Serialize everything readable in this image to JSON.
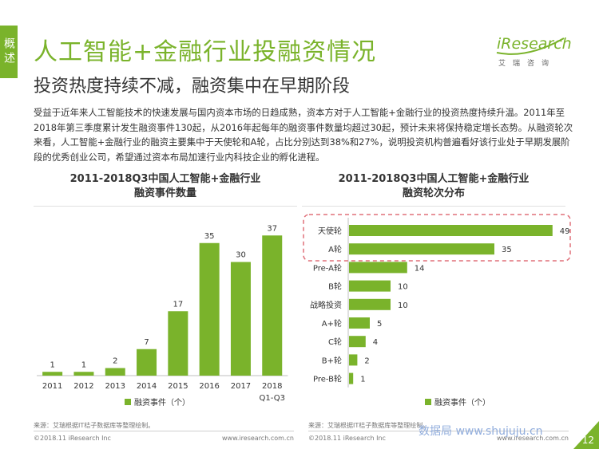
{
  "side_tab": "概述",
  "title": "人工智能+金融行业投融资情况",
  "subtitle": "投资热度持续不减，融资集中在早期阶段",
  "logo": {
    "text": "iResearch",
    "sub": "艾瑞咨询"
  },
  "body": "受益于近年来人工智能技术的快速发展与国内资本市场的日趋成熟，资本方对于人工智能+金融行业的投资热度持续升温。2011年至2018年第三季度累计发生融资事件130起，从2016年起每年的融资事件数量均超过30起，预计未来将保持稳定增长态势。从融资轮次来看，人工智能+金融行业的融资主要集中于天使轮和A轮，占比分别达到38%和27%，说明投资机构普遍看好该行业处于早期发展阶段的优秀创业公司，希望通过资本布局加速行业内科技企业的孵化进程。",
  "colors": {
    "accent": "#7ab32b",
    "highlight_border": "#e0707a"
  },
  "chart_data": [
    {
      "type": "bar",
      "title": "2011-2018Q3中国人工智能+金融行业\n融资事件数量",
      "categories": [
        "2011",
        "2012",
        "2013",
        "2014",
        "2015",
        "2016",
        "2017",
        "2018\nQ1-Q3"
      ],
      "series": [
        {
          "name": "融资事件（个）",
          "values": [
            1,
            1,
            2,
            7,
            17,
            35,
            30,
            37
          ]
        }
      ],
      "ylim": [
        0,
        40
      ],
      "legend": "bottom"
    },
    {
      "type": "bar",
      "orientation": "horizontal",
      "title": "2011-2018Q3中国人工智能+金融行业\n融资轮次分布",
      "categories": [
        "天使轮",
        "A轮",
        "Pre-A轮",
        "B轮",
        "战略投资",
        "A+轮",
        "C轮",
        "B+轮",
        "Pre-B轮"
      ],
      "series": [
        {
          "name": "融资事件（个）",
          "values": [
            49,
            35,
            14,
            10,
            10,
            5,
            4,
            2,
            1
          ]
        }
      ],
      "xlim": [
        0,
        50
      ],
      "highlighted": [
        "天使轮",
        "A轮"
      ],
      "legend": "bottom"
    }
  ],
  "left_chart": {
    "title_line1": "2011-2018Q3中国人工智能+金融行业",
    "title_line2": "融资事件数量",
    "legend": "融资事件（个）",
    "source": "来源：艾瑞根据IT桔子数据库等整理绘制。",
    "copyright": "©2018.11 iResearch Inc",
    "website": "www.iresearch.com.cn"
  },
  "right_chart": {
    "title_line1": "2011-2018Q3中国人工智能+金融行业",
    "title_line2": "融资轮次分布",
    "legend": "融资事件（个）",
    "source": "来源：艾瑞根据IT桔子数据库等整理绘制。",
    "copyright": "©2018.11 iResearch Inc",
    "website": "www.iresearch.com.cn"
  },
  "watermark": "数据局 www.shujuju.cn",
  "page_number": "12"
}
